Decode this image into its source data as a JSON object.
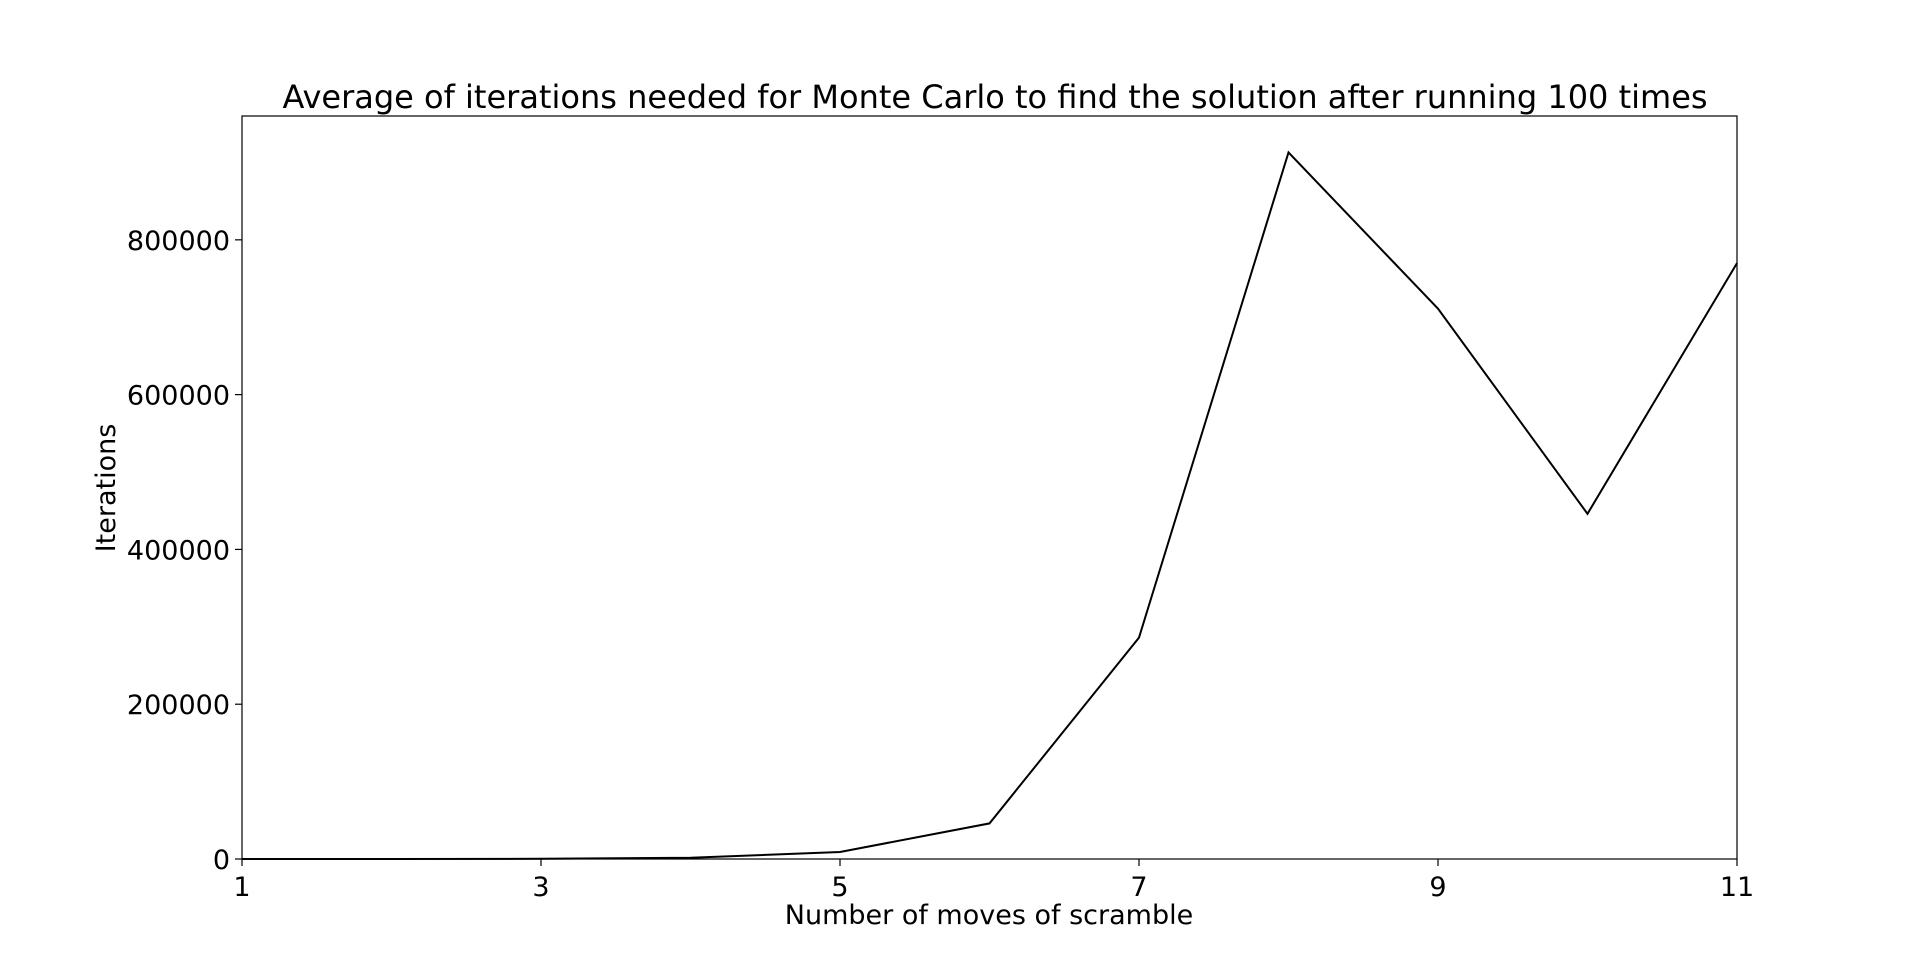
{
  "chart_data": {
    "type": "line",
    "title": "Average of iterations needed for Monte Carlo to find the solution after running 100 times",
    "xlabel": "Number of moves of scramble",
    "ylabel": "Iterations",
    "x": [
      1,
      2,
      3,
      4,
      5,
      6,
      7,
      8,
      9,
      10,
      11
    ],
    "series": [
      {
        "name": "Iterations",
        "values": [
          0,
          50,
          200,
          1500,
          9000,
          46000,
          286000,
          913000,
          711000,
          446000,
          770000
        ],
        "color": "#000000"
      }
    ],
    "xlim": [
      1,
      11
    ],
    "ylim": [
      0,
      960000
    ],
    "xticks": [
      "1",
      "3",
      "5",
      "7",
      "9",
      "11"
    ],
    "xtick_values": [
      1,
      3,
      5,
      7,
      9,
      11
    ],
    "yticks": [
      "0",
      "200000",
      "400000",
      "600000",
      "800000"
    ],
    "ytick_values": [
      0,
      200000,
      400000,
      600000,
      800000
    ],
    "grid": false,
    "legend": "none"
  }
}
